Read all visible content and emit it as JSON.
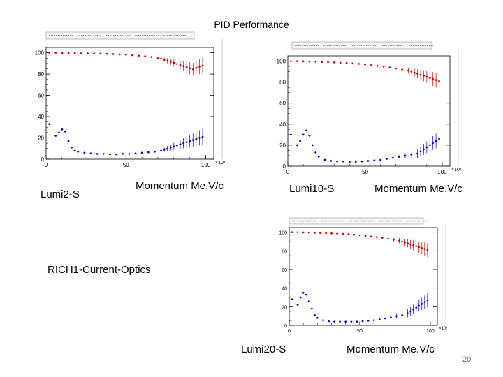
{
  "slide": {
    "title": "PID Performance",
    "section_label": "RICH1-Current-Optics",
    "page_number": "20"
  },
  "colors": {
    "efficiency": "#d40000",
    "misid": "#0000cc",
    "frame": "#000000",
    "statbox": "#333333"
  },
  "chart_data": [
    {
      "type": "scatter",
      "label": "Lumi2-S",
      "xlabel": "Momentum  Me.V/c",
      "x_multiplier_label": "×10³",
      "xlim": [
        0,
        105
      ],
      "ylim": [
        0,
        105
      ],
      "x_ticks": [
        "0",
        "50",
        "100"
      ],
      "y_ticks": [
        "0",
        "20",
        "40",
        "60",
        "80",
        "100"
      ],
      "series": [
        {
          "name": "efficiency",
          "color": "#d40000",
          "x": [
            2,
            6,
            10,
            14,
            18,
            22,
            26,
            30,
            34,
            38,
            42,
            46,
            50,
            54,
            58,
            62,
            66,
            70,
            72,
            74,
            76,
            78,
            80,
            82,
            84,
            86,
            88,
            90,
            92,
            94,
            96,
            98
          ],
          "y": [
            100,
            100,
            99.8,
            99.7,
            99.6,
            99.5,
            99.5,
            99.3,
            99.2,
            99,
            98.8,
            98.5,
            98.2,
            97.8,
            97.3,
            96.8,
            96,
            95,
            94.5,
            93.5,
            92.5,
            91.5,
            90.5,
            89.5,
            88.5,
            87.5,
            86.5,
            85.5,
            84.5,
            86,
            87,
            88
          ]
        },
        {
          "name": "misid",
          "color": "#0000cc",
          "x": [
            2,
            6,
            8,
            10,
            12,
            14,
            16,
            18,
            20,
            24,
            28,
            32,
            36,
            40,
            44,
            48,
            52,
            56,
            60,
            64,
            68,
            72,
            74,
            76,
            78,
            80,
            82,
            84,
            86,
            88,
            90,
            92,
            94,
            96,
            98
          ],
          "y": [
            33,
            22,
            25,
            28,
            26,
            17,
            11,
            8,
            7,
            6,
            5.5,
            5,
            5,
            4.5,
            4.5,
            5,
            5,
            5.5,
            6,
            6.5,
            7,
            8,
            9,
            10,
            11,
            12,
            13,
            14,
            15,
            16,
            17,
            18,
            19,
            20,
            21
          ]
        }
      ]
    },
    {
      "type": "scatter",
      "label": "Lumi10-S",
      "xlabel": "Momentum  Me.V/c",
      "x_multiplier_label": "×10³",
      "xlim": [
        0,
        105
      ],
      "ylim": [
        0,
        105
      ],
      "x_ticks": [
        "0",
        "50",
        "100"
      ],
      "y_ticks": [
        "0",
        "20",
        "40",
        "60",
        "80",
        "100"
      ],
      "series": [
        {
          "name": "efficiency",
          "color": "#d40000",
          "x": [
            2,
            6,
            10,
            14,
            18,
            22,
            26,
            30,
            34,
            38,
            42,
            46,
            50,
            54,
            58,
            62,
            66,
            70,
            74,
            78,
            80,
            82,
            84,
            86,
            88,
            90,
            92,
            94,
            96,
            98
          ],
          "y": [
            100,
            100,
            99.8,
            99.6,
            99.4,
            99.2,
            99,
            98.8,
            98.5,
            98.2,
            97.8,
            97.4,
            96.8,
            96.2,
            95.5,
            94.8,
            94,
            93,
            92,
            91,
            90,
            89,
            88,
            87,
            86,
            85,
            84,
            83,
            82,
            81
          ]
        },
        {
          "name": "misid",
          "color": "#0000cc",
          "x": [
            2,
            6,
            8,
            10,
            12,
            14,
            16,
            18,
            20,
            24,
            28,
            32,
            36,
            40,
            44,
            48,
            52,
            56,
            60,
            64,
            68,
            72,
            76,
            80,
            84,
            86,
            88,
            90,
            92,
            94,
            96,
            98
          ],
          "y": [
            30,
            20,
            24,
            30,
            34,
            29,
            20,
            13,
            9,
            6,
            5,
            4.5,
            4.5,
            4,
            4,
            4.5,
            5,
            5.5,
            6,
            7,
            8,
            9,
            10,
            11,
            12,
            14,
            16,
            18,
            20,
            22,
            24,
            26
          ]
        }
      ]
    },
    {
      "type": "scatter",
      "label": "Lumi20-S",
      "xlabel": "Momentum  Me.V/c",
      "x_multiplier_label": "×10³",
      "xlim": [
        0,
        105
      ],
      "ylim": [
        0,
        105
      ],
      "x_ticks": [
        "0",
        "50",
        "100"
      ],
      "y_ticks": [
        "0",
        "20",
        "40",
        "60",
        "80",
        "100"
      ],
      "series": [
        {
          "name": "efficiency",
          "color": "#d40000",
          "x": [
            2,
            6,
            10,
            14,
            18,
            22,
            26,
            30,
            34,
            38,
            42,
            46,
            50,
            54,
            58,
            62,
            66,
            70,
            74,
            78,
            80,
            82,
            84,
            86,
            88,
            90,
            92,
            94,
            96,
            98
          ],
          "y": [
            100,
            100,
            99.8,
            99.6,
            99.4,
            99.2,
            99,
            98.8,
            98.5,
            98.2,
            97.8,
            97.4,
            96.8,
            96.2,
            95.5,
            94.8,
            94,
            93,
            92,
            91,
            90,
            89,
            88,
            87,
            86,
            85,
            84,
            83,
            82,
            81
          ]
        },
        {
          "name": "misid",
          "color": "#0000cc",
          "x": [
            2,
            6,
            8,
            10,
            12,
            14,
            16,
            18,
            20,
            24,
            28,
            32,
            36,
            40,
            44,
            48,
            52,
            56,
            60,
            64,
            68,
            72,
            76,
            80,
            84,
            86,
            88,
            90,
            92,
            94,
            96,
            98
          ],
          "y": [
            28,
            22,
            30,
            35,
            33,
            26,
            18,
            11,
            8,
            5.5,
            4.5,
            4,
            4,
            4,
            4,
            4,
            4.5,
            5,
            5.5,
            6.5,
            7.5,
            8.5,
            10,
            11,
            13,
            15,
            17,
            19,
            21,
            23,
            25,
            27
          ]
        }
      ]
    }
  ]
}
